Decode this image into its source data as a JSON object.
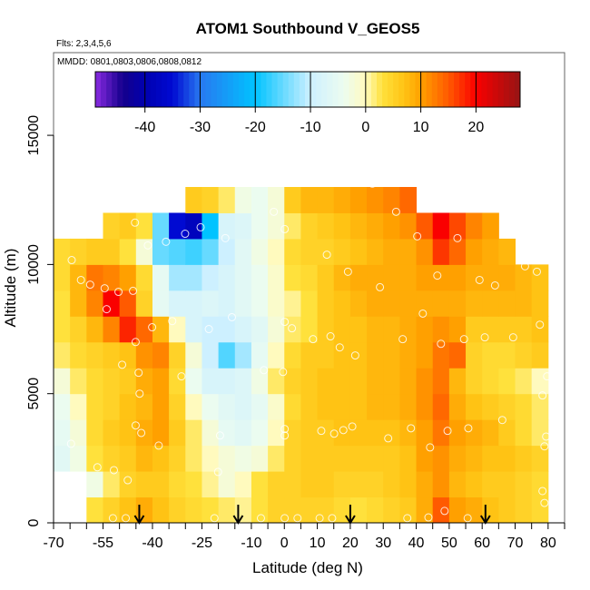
{
  "chart_data": {
    "type": "heatmap",
    "title": "ATOM1 Southbound V_GEOS5",
    "subtitle_flights": "Flts: 2,3,4,5,6",
    "subtitle_dates": "MMDD: 0801,0803,0806,0808,0812",
    "xlabel": "Latitude (deg N)",
    "ylabel": "Altitude (m)",
    "xlim": [
      -70,
      85
    ],
    "ylim": [
      0,
      18200
    ],
    "x_tick_values": [
      -70,
      -65,
      -60,
      -55,
      -50,
      -45,
      -40,
      -35,
      -30,
      -25,
      -20,
      -15,
      -10,
      -5,
      0,
      5,
      10,
      15,
      20,
      25,
      30,
      35,
      40,
      45,
      50,
      55,
      60,
      65,
      70,
      75,
      80,
      85
    ],
    "x_tick_labels": [
      "-70",
      "-55",
      "-40",
      "-25",
      "-10",
      "0",
      "10",
      "20",
      "30",
      "40",
      "50",
      "60",
      "70",
      "80"
    ],
    "x_tick_label_values": [
      -70,
      -55,
      -40,
      -25,
      -10,
      0,
      10,
      20,
      30,
      40,
      50,
      60,
      70,
      80
    ],
    "y_ticks": [
      0,
      5000,
      10000,
      15000
    ],
    "y_tick_labels": [
      "0",
      "5000",
      "10000",
      "15000"
    ],
    "lat_bin_edges_start": -70,
    "lat_bin_width": 5,
    "alt_bin_width": 1000,
    "grid_values_by_altitude_row_from_bottom": [
      [
        null,
        null,
        3,
        5,
        7,
        9,
        7,
        5,
        4,
        3,
        2,
        1,
        3,
        5,
        5,
        5,
        5,
        4,
        3,
        4,
        5,
        6,
        9,
        15,
        10,
        9,
        7,
        6,
        5,
        4
      ],
      [
        null,
        null,
        -3,
        2,
        5,
        6,
        6,
        4,
        3,
        1,
        -2,
        0,
        3,
        5,
        5,
        6,
        6,
        5,
        5,
        5,
        6,
        7,
        9,
        11,
        8,
        7,
        6,
        6,
        5,
        4
      ],
      [
        -6,
        -3,
        3,
        5,
        6,
        8,
        7,
        5,
        2,
        0,
        -2,
        -3,
        -2,
        2,
        5,
        6,
        6,
        6,
        6,
        6,
        6,
        7,
        10,
        11,
        9,
        8,
        7,
        7,
        6,
        5
      ],
      [
        -5,
        -2,
        4,
        6,
        7,
        9,
        10,
        6,
        2,
        -2,
        -5,
        -6,
        -4,
        0,
        5,
        6,
        6,
        7,
        7,
        7,
        7,
        8,
        10,
        13,
        10,
        9,
        8,
        6,
        4,
        2
      ],
      [
        -4,
        0,
        4,
        5,
        7,
        8,
        10,
        5,
        0,
        -4,
        -6,
        -7,
        -5,
        -1,
        4,
        6,
        7,
        7,
        7,
        8,
        8,
        9,
        11,
        14,
        9,
        7,
        6,
        5,
        4,
        2
      ],
      [
        -2,
        2,
        4,
        5,
        6,
        9,
        10,
        4,
        -4,
        -8,
        -8,
        -7,
        -3,
        2,
        5,
        6,
        7,
        7,
        7,
        8,
        8,
        9,
        11,
        13,
        8,
        5,
        4,
        3,
        2,
        0
      ],
      [
        2,
        4,
        5,
        6,
        7,
        11,
        12,
        5,
        -2,
        -10,
        -16,
        -12,
        -5,
        0,
        4,
        6,
        6,
        7,
        7,
        8,
        8,
        9,
        10,
        13,
        14,
        5,
        4,
        4,
        5,
        6
      ],
      [
        3,
        5,
        8,
        12,
        18,
        14,
        8,
        0,
        -8,
        -10,
        -10,
        -8,
        -6,
        -2,
        2,
        3,
        6,
        7,
        7,
        8,
        8,
        9,
        10,
        11,
        10,
        6,
        6,
        6,
        6,
        7
      ],
      [
        3,
        8,
        12,
        20,
        15,
        5,
        -5,
        -8,
        -8,
        -7,
        -8,
        -6,
        -4,
        -1,
        1,
        3,
        6,
        7,
        8,
        9,
        9,
        9,
        9,
        9,
        9,
        8,
        8,
        8,
        8,
        7
      ],
      [
        4,
        8,
        13,
        12,
        10,
        4,
        -5,
        -12,
        -12,
        -10,
        -8,
        -6,
        -4,
        -1,
        3,
        4,
        6,
        8,
        9,
        9,
        9,
        9,
        10,
        10,
        10,
        9,
        9,
        9,
        8,
        7
      ],
      [
        4,
        5,
        6,
        6,
        3,
        -2,
        -15,
        -16,
        -17,
        -15,
        -10,
        -6,
        -3,
        0,
        4,
        5,
        5,
        6,
        7,
        8,
        9,
        9,
        11,
        17,
        14,
        10,
        9,
        8,
        null,
        null
      ],
      [
        null,
        null,
        null,
        5,
        6,
        3,
        -15,
        -35,
        -38,
        -20,
        -8,
        -7,
        -4,
        -2,
        2,
        5,
        6,
        7,
        8,
        9,
        10,
        11,
        15,
        20,
        16,
        12,
        10,
        null,
        null,
        null
      ],
      [
        null,
        null,
        null,
        null,
        null,
        null,
        null,
        null,
        6,
        5,
        2,
        -3,
        -4,
        -2,
        6,
        8,
        8,
        9,
        10,
        11,
        12,
        14,
        null,
        null,
        null,
        null,
        null,
        null,
        null,
        null
      ]
    ],
    "colorbar": {
      "min": -49,
      "max": 28,
      "ticks": [
        -40,
        -30,
        -20,
        -10,
        0,
        10,
        20
      ],
      "tick_labels": [
        "-40",
        "-30",
        "-20",
        "-10",
        "0",
        "10",
        "20"
      ]
    },
    "observation_points": [
      [
        -45.3,
        11620
      ],
      [
        -3.2,
        12040
      ],
      [
        0.1,
        11370
      ],
      [
        -30.1,
        11190
      ],
      [
        -25.4,
        11440
      ],
      [
        -17.9,
        11020
      ],
      [
        -35.9,
        10880
      ],
      [
        -41.4,
        10740
      ],
      [
        -64.5,
        10170
      ],
      [
        -61.7,
        9400
      ],
      [
        -58.9,
        9220
      ],
      [
        -54.5,
        9080
      ],
      [
        -50.3,
        8940
      ],
      [
        -45.9,
        8980
      ],
      [
        -53.9,
        8270
      ],
      [
        -34.0,
        7810
      ],
      [
        -15.9,
        7960
      ],
      [
        -40.1,
        7570
      ],
      [
        -22.9,
        7500
      ],
      [
        0.1,
        7780
      ],
      [
        2.3,
        7530
      ],
      [
        -45.1,
        7000
      ],
      [
        -49.2,
        6120
      ],
      [
        -44.2,
        5810
      ],
      [
        -6.2,
        5910
      ],
      [
        -0.4,
        5840
      ],
      [
        -31.2,
        5670
      ],
      [
        -43.9,
        5000
      ],
      [
        -45.1,
        3770
      ],
      [
        -43.4,
        3480
      ],
      [
        -19.5,
        3380
      ],
      [
        0.1,
        3630
      ],
      [
        0.1,
        3380
      ],
      [
        -38.1,
        2990
      ],
      [
        -64.7,
        3060
      ],
      [
        -56.7,
        2150
      ],
      [
        -51.7,
        2040
      ],
      [
        -47.5,
        1650
      ],
      [
        -20.1,
        1970
      ],
      [
        -52.0,
        180
      ],
      [
        -48.1,
        180
      ],
      [
        -21.2,
        180
      ],
      [
        -7.1,
        180
      ],
      [
        0.1,
        180
      ],
      [
        4.0,
        180
      ],
      [
        26.7,
        13130
      ],
      [
        33.9,
        12040
      ],
      [
        40.3,
        11090
      ],
      [
        52.5,
        11020
      ],
      [
        67.8,
        11400
      ],
      [
        12.9,
        10380
      ],
      [
        19.3,
        9720
      ],
      [
        46.4,
        9570
      ],
      [
        29.0,
        9120
      ],
      [
        59.2,
        9400
      ],
      [
        63.9,
        9190
      ],
      [
        73.0,
        9930
      ],
      [
        76.6,
        9720
      ],
      [
        42.0,
        8100
      ],
      [
        77.5,
        7670
      ],
      [
        8.7,
        7110
      ],
      [
        14.0,
        7220
      ],
      [
        35.9,
        7110
      ],
      [
        47.5,
        6930
      ],
      [
        54.5,
        7110
      ],
      [
        60.8,
        7180
      ],
      [
        69.4,
        7180
      ],
      [
        16.8,
        6790
      ],
      [
        21.5,
        6480
      ],
      [
        79.7,
        5670
      ],
      [
        78.3,
        4930
      ],
      [
        11.2,
        3560
      ],
      [
        15.1,
        3450
      ],
      [
        17.9,
        3590
      ],
      [
        20.6,
        3730
      ],
      [
        38.4,
        3660
      ],
      [
        49.5,
        3560
      ],
      [
        55.8,
        3660
      ],
      [
        66.1,
        3980
      ],
      [
        31.5,
        3270
      ],
      [
        44.2,
        2920
      ],
      [
        79.4,
        3340
      ],
      [
        78.9,
        2960
      ],
      [
        78.3,
        1230
      ],
      [
        78.9,
        770
      ],
      [
        48.6,
        460
      ],
      [
        10.7,
        180
      ],
      [
        14.5,
        180
      ],
      [
        37.3,
        180
      ],
      [
        43.7,
        210
      ],
      [
        55.6,
        180
      ]
    ],
    "arrow_latitudes": [
      -44,
      -14,
      20,
      61
    ],
    "grid": false
  }
}
